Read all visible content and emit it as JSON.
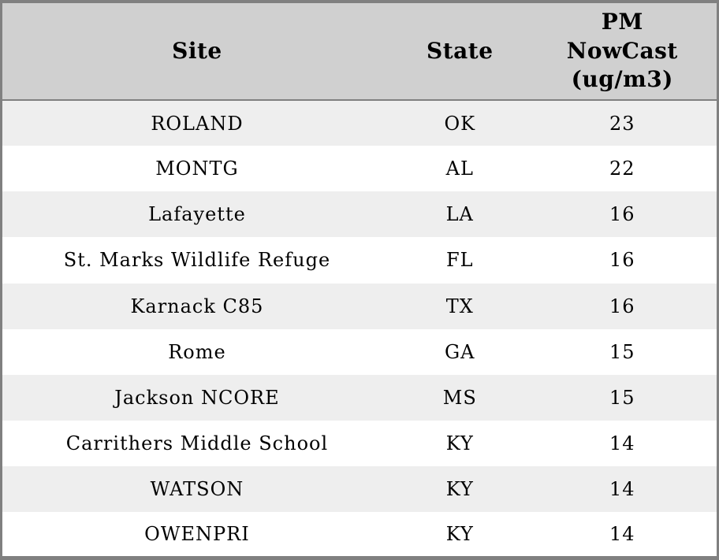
{
  "chart_data": {
    "type": "table",
    "title": "",
    "columns": [
      "Site",
      "State",
      "PM NowCast (ug/m3)"
    ],
    "column_display_labels": [
      "Site",
      "State",
      "PM\nNowCast\n(ug/m3)"
    ],
    "rows": [
      [
        "ROLAND",
        "OK",
        23
      ],
      [
        "MONTG",
        "AL",
        22
      ],
      [
        "Lafayette",
        "LA",
        16
      ],
      [
        "St. Marks Wildlife Refuge",
        "FL",
        16
      ],
      [
        "Karnack C85",
        "TX",
        16
      ],
      [
        "Rome",
        "GA",
        15
      ],
      [
        "Jackson NCORE",
        "MS",
        15
      ],
      [
        "Carrithers Middle School",
        "KY",
        14
      ],
      [
        "WATSON",
        "KY",
        14
      ],
      [
        "OWENPRI",
        "KY",
        14
      ]
    ],
    "layout": {
      "grid": "off",
      "row_striping": true,
      "alignment": "center"
    }
  },
  "colors": {
    "header_bg": "#d0d0d0",
    "row_alt_bg": "#eeeeee",
    "row_bg": "#ffffff",
    "border": "#808080",
    "text": "#000000"
  }
}
